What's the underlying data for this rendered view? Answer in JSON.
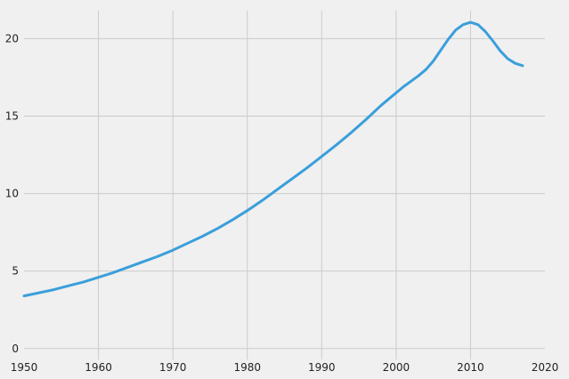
{
  "chart_data": {
    "type": "line",
    "title": "",
    "xlabel": "",
    "ylabel": "",
    "xlim": [
      1950,
      2020
    ],
    "ylim": [
      -0.7,
      21.8
    ],
    "x_ticks": [
      1950,
      1960,
      1970,
      1980,
      1990,
      2000,
      2010,
      2020
    ],
    "y_ticks": [
      0,
      5,
      10,
      15,
      20
    ],
    "grid": true,
    "legend": "none",
    "colors": {
      "background": "#f0f0f0",
      "grid": "#cbcbcb",
      "series": "#3a9fdb"
    },
    "series": [
      {
        "x": [
          1950,
          1952,
          1954,
          1956,
          1958,
          1960,
          1962,
          1964,
          1966,
          1968,
          1970,
          1972,
          1974,
          1976,
          1978,
          1980,
          1982,
          1984,
          1986,
          1988,
          1990,
          1992,
          1994,
          1996,
          1998,
          2000,
          2001,
          2002,
          2003,
          2004,
          2005,
          2006,
          2007,
          2008,
          2009,
          2010,
          2011,
          2012,
          2013,
          2014,
          2015,
          2016,
          2017
        ],
        "y": [
          3.4,
          3.6,
          3.8,
          4.05,
          4.3,
          4.6,
          4.9,
          5.25,
          5.6,
          5.95,
          6.35,
          6.8,
          7.25,
          7.75,
          8.3,
          8.9,
          9.55,
          10.25,
          10.95,
          11.65,
          12.4,
          13.15,
          13.95,
          14.8,
          15.7,
          16.5,
          16.9,
          17.25,
          17.6,
          18.0,
          18.55,
          19.25,
          19.95,
          20.55,
          20.9,
          21.05,
          20.9,
          20.45,
          19.85,
          19.2,
          18.7,
          18.4,
          18.25
        ]
      }
    ]
  }
}
